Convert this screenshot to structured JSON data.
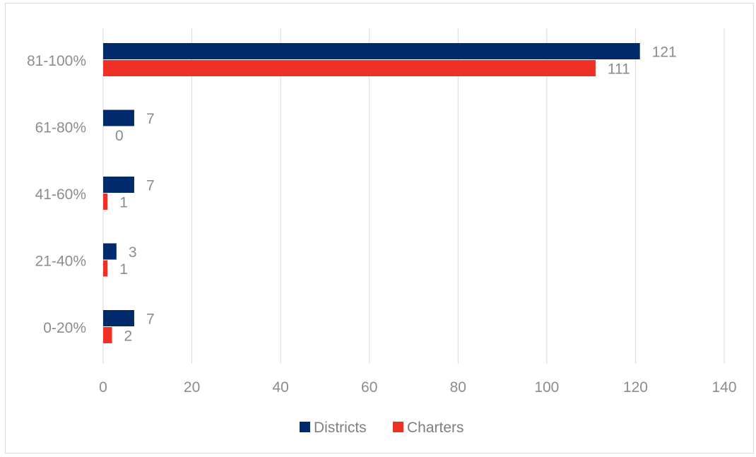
{
  "chart_data": {
    "type": "bar",
    "orientation": "horizontal",
    "categories": [
      "81-100%",
      "61-80%",
      "41-60%",
      "21-40%",
      "0-20%"
    ],
    "series": [
      {
        "name": "Districts",
        "color": "#002a6c",
        "values": [
          121,
          7,
          7,
          3,
          7
        ]
      },
      {
        "name": "Charters",
        "color": "#ee3124",
        "values": [
          111,
          0,
          1,
          1,
          2
        ]
      }
    ],
    "xlim": [
      0,
      140
    ],
    "xticks": [
      0,
      20,
      40,
      60,
      80,
      100,
      120,
      140
    ],
    "grid": true,
    "legend": "bottom",
    "title": "",
    "xlabel": "",
    "ylabel": ""
  }
}
